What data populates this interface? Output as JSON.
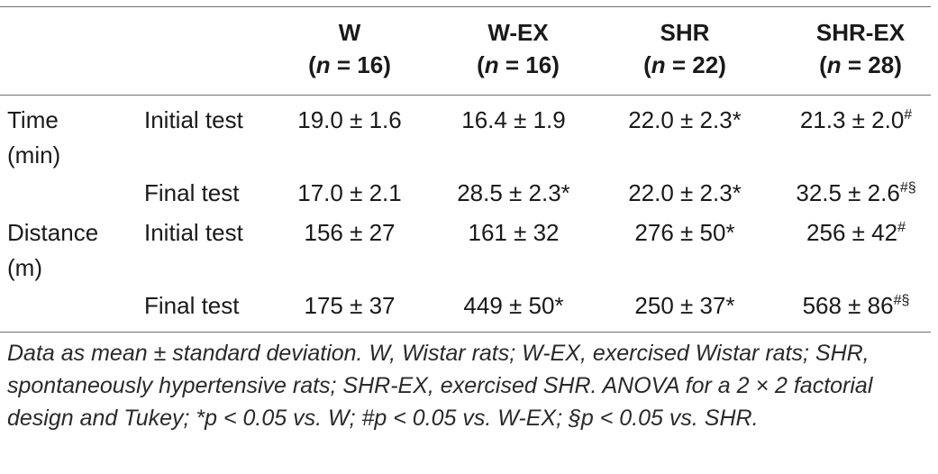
{
  "columns": [
    {
      "name": "W",
      "n": "(n = 16)"
    },
    {
      "name": "W-EX",
      "n": "(n = 16)"
    },
    {
      "name": "SHR",
      "n": "(n = 22)"
    },
    {
      "name": "SHR-EX",
      "n": "(n = 28)"
    }
  ],
  "groups": [
    {
      "label_line1": "Time",
      "label_line2": "(min)",
      "rows": [
        {
          "test": "Initial test",
          "values": [
            {
              "v": "19.0 ± 1.6",
              "sup": ""
            },
            {
              "v": "16.4 ± 1.9",
              "sup": ""
            },
            {
              "v": "22.0 ± 2.3*",
              "sup": ""
            },
            {
              "v": "21.3 ± 2.0",
              "sup": "#"
            }
          ]
        },
        {
          "test": "Final test",
          "values": [
            {
              "v": "17.0 ± 2.1",
              "sup": ""
            },
            {
              "v": "28.5 ± 2.3*",
              "sup": ""
            },
            {
              "v": "22.0 ± 2.3*",
              "sup": ""
            },
            {
              "v": "32.5 ± 2.6",
              "sup": "#§"
            }
          ]
        }
      ]
    },
    {
      "label_line1": "Distance",
      "label_line2": "(m)",
      "rows": [
        {
          "test": "Initial test",
          "values": [
            {
              "v": "156 ± 27",
              "sup": ""
            },
            {
              "v": "161 ± 32",
              "sup": ""
            },
            {
              "v": "276 ± 50*",
              "sup": ""
            },
            {
              "v": "256 ± 42",
              "sup": "#"
            }
          ]
        },
        {
          "test": "Final test",
          "values": [
            {
              "v": "175 ± 37",
              "sup": ""
            },
            {
              "v": "449 ± 50*",
              "sup": ""
            },
            {
              "v": "250 ± 37*",
              "sup": ""
            },
            {
              "v": "568 ± 86",
              "sup": "#§"
            }
          ]
        }
      ]
    }
  ],
  "footnote": "Data as mean ± standard deviation. W, Wistar rats; W-EX, exercised Wistar rats; SHR, spontaneously hypertensive rats; SHR-EX, exercised SHR. ANOVA for a 2 × 2 factorial design and Tukey; *p < 0.05 vs. W; #p < 0.05 vs. W-EX; §p < 0.05 vs. SHR."
}
